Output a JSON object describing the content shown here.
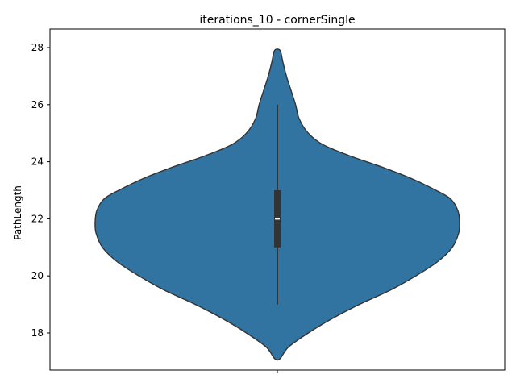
{
  "chart_data": {
    "type": "violin",
    "title": "iterations_10 - cornerSingle",
    "xlabel": "",
    "ylabel": "PathLength",
    "ylim": [
      16.7,
      28.65
    ],
    "y_ticks": [
      18,
      20,
      22,
      24,
      26,
      28
    ],
    "y_tick_labels": [
      "18",
      "20",
      "22",
      "24",
      "26",
      "28"
    ],
    "grid": false,
    "legend": "none",
    "series": [
      {
        "min": 19,
        "q1": 21,
        "median": 22,
        "q3": 23,
        "max": 26,
        "density_extent": [
          17.1,
          27.9
        ],
        "density_profile": [
          {
            "y": 17.1,
            "w": 0.015
          },
          {
            "y": 17.5,
            "w": 0.06
          },
          {
            "y": 18.0,
            "w": 0.17
          },
          {
            "y": 18.5,
            "w": 0.3
          },
          {
            "y": 19.0,
            "w": 0.45
          },
          {
            "y": 19.5,
            "w": 0.62
          },
          {
            "y": 20.0,
            "w": 0.76
          },
          {
            "y": 20.5,
            "w": 0.88
          },
          {
            "y": 21.0,
            "w": 0.96
          },
          {
            "y": 21.5,
            "w": 0.995
          },
          {
            "y": 21.9,
            "w": 1.0
          },
          {
            "y": 22.3,
            "w": 0.99
          },
          {
            "y": 22.7,
            "w": 0.95
          },
          {
            "y": 23.0,
            "w": 0.87
          },
          {
            "y": 23.4,
            "w": 0.74
          },
          {
            "y": 23.8,
            "w": 0.58
          },
          {
            "y": 24.2,
            "w": 0.4
          },
          {
            "y": 24.6,
            "w": 0.25
          },
          {
            "y": 25.0,
            "w": 0.17
          },
          {
            "y": 25.5,
            "w": 0.12
          },
          {
            "y": 26.0,
            "w": 0.1
          },
          {
            "y": 26.5,
            "w": 0.075
          },
          {
            "y": 27.0,
            "w": 0.05
          },
          {
            "y": 27.5,
            "w": 0.03
          },
          {
            "y": 27.9,
            "w": 0.015
          }
        ]
      }
    ]
  },
  "colors": {
    "violin_fill": "#3274a1",
    "violin_edge": "#333333",
    "box": "#333333",
    "median": "#ffffff",
    "axes": "#000000"
  }
}
